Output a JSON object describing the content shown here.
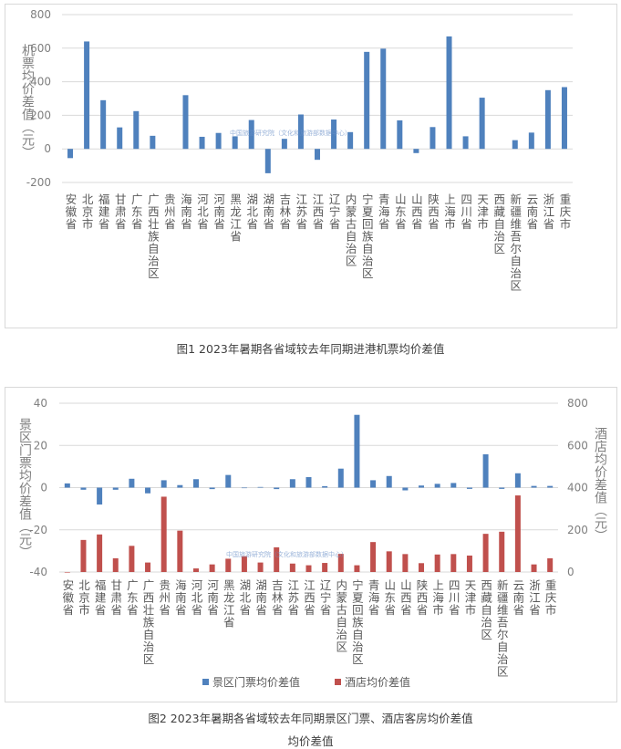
{
  "watermark": "中国旅游研究院（文化和旅游部数据中心）",
  "chart_data": [
    {
      "type": "bar",
      "title": "图1 2023年暑期各省域较去年同期进港机票均价差值",
      "xlabel": "",
      "ylabel": "机票均价差值（元）",
      "ylim": [
        -200,
        800
      ],
      "yticks": [
        -200,
        0,
        200,
        400,
        600,
        800
      ],
      "tick_labels": [
        "-200",
        "0",
        "200",
        "400",
        "600",
        "800"
      ],
      "grid": true,
      "color": "#4f81bd",
      "categories": [
        "安徽省",
        "北京市",
        "福建省",
        "甘肃省",
        "广东省",
        "广西壮族自治区",
        "贵州省",
        "海南省",
        "河北省",
        "河南省",
        "黑龙江省",
        "湖北省",
        "湖南省",
        "吉林省",
        "江苏省",
        "江西省",
        "辽宁省",
        "内蒙古自治区",
        "宁夏回族自治区",
        "青海省",
        "山东省",
        "山西省",
        "陕西省",
        "上海市",
        "四川省",
        "天津市",
        "西藏自治区",
        "新疆维吾尔自治区",
        "云南省",
        "浙江省",
        "重庆市"
      ],
      "values": [
        -55,
        640,
        290,
        128,
        225,
        78,
        0,
        320,
        72,
        95,
        75,
        172,
        -145,
        60,
        205,
        -65,
        175,
        100,
        578,
        597,
        170,
        -25,
        130,
        670,
        75,
        305,
        0,
        52,
        97,
        350,
        368
      ]
    },
    {
      "type": "bar",
      "title": "图2  2023年暑期各省域较去年同期景区门票、酒店客房均价差值",
      "title_line2": "均价差值",
      "xlabel": "",
      "ylabel": "景区门票均价差值（元）",
      "ylabel_right": "酒店均价差值（元）",
      "ylim": [
        -40,
        40
      ],
      "ylim_right": [
        0,
        800
      ],
      "yticks": [
        -40,
        -20,
        0,
        20,
        40
      ],
      "tick_labels": [
        "-40",
        "-20",
        "0",
        "20",
        "40"
      ],
      "yticks_right": [
        0,
        200,
        400,
        600,
        800
      ],
      "tick_labels_right": [
        "0",
        "200",
        "400",
        "600",
        "800"
      ],
      "grid": true,
      "legend": "bottom",
      "categories": [
        "安徽省",
        "北京市",
        "福建省",
        "甘肃省",
        "广东省",
        "广西壮族自治区",
        "贵州省",
        "海南省",
        "河北省",
        "河南省",
        "黑龙江省",
        "湖北省",
        "湖南省",
        "吉林省",
        "江苏省",
        "江西省",
        "辽宁省",
        "内蒙古自治区",
        "宁夏回族自治区",
        "青海省",
        "山东省",
        "山西省",
        "陕西省",
        "上海市",
        "四川省",
        "天津市",
        "西藏自治区",
        "新疆维吾尔自治区",
        "云南省",
        "浙江省",
        "重庆市"
      ],
      "series": [
        {
          "name": "景区门票均价差值",
          "axis": "left",
          "color": "#4f81bd",
          "values": [
            2,
            -1,
            -8,
            -1,
            4.2,
            -2.7,
            3.5,
            1.2,
            4,
            -0.7,
            6,
            0,
            0.3,
            -0.7,
            4,
            5,
            0.7,
            9,
            34.5,
            3.5,
            5.5,
            -1.3,
            1,
            1.8,
            2.2,
            -0.6,
            15.8,
            -0.6,
            6.8,
            0.8,
            0.8
          ]
        },
        {
          "name": "酒店均价差值",
          "axis": "right",
          "color": "#c0504d",
          "values": [
            0,
            152,
            178,
            65,
            124,
            45,
            357,
            196,
            17,
            36,
            63,
            75,
            45,
            117,
            40,
            32,
            43,
            86,
            32,
            142,
            98,
            85,
            42,
            83,
            85,
            78,
            181,
            191,
            363,
            36,
            65
          ]
        }
      ]
    }
  ]
}
